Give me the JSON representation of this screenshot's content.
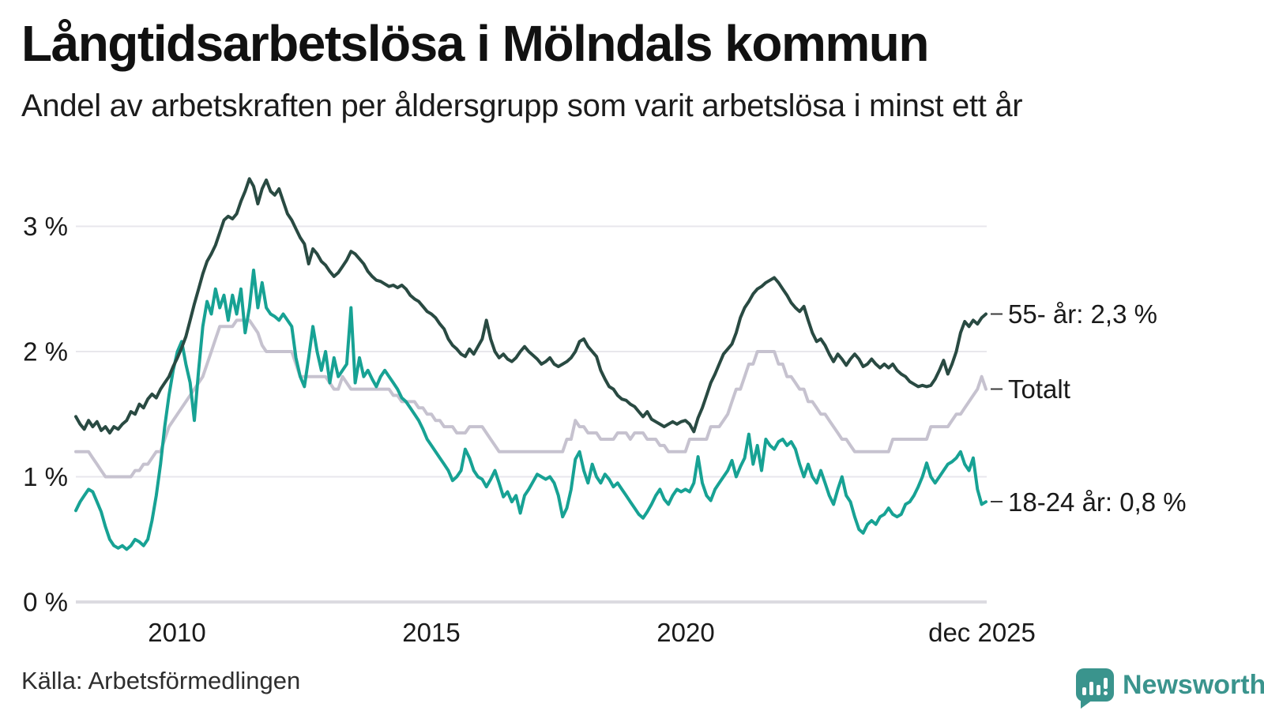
{
  "header": {
    "title": "Långtidsarbetslösa i Mölndals kommun",
    "subtitle": "Andel av arbetskraften per åldersgrupp som varit arbetslösa i minst ett år"
  },
  "footer": {
    "source": "Källa: Arbetsförmedlingen",
    "brand_name": "Newsworthy",
    "brand_color": "#3a948d",
    "brand_icon": "bar-chart-speech-bubble-icon"
  },
  "colors": {
    "series_55": "#294a42",
    "series_totalt": "#c6c2cf",
    "series_18_24": "#17a294",
    "gridline": "#e8e7ec",
    "baseline": "#dcdbe1",
    "text": "#1a1a1a",
    "connector_dash": "#3a3a3a"
  },
  "chart_data": {
    "type": "line",
    "title": "Långtidsarbetslösa i Mölndals kommun",
    "subtitle": "Andel av arbetskraften per åldersgrupp som varit arbetslösa i minst ett år",
    "x_frequency": "monthly",
    "x_start": "2008-01",
    "x_end": "2025-12",
    "x_tick_labels": [
      "2010",
      "2015",
      "2020",
      "dec 2025"
    ],
    "x_tick_month_index": [
      24,
      84,
      144,
      215
    ],
    "y_tick_labels": [
      "0 %",
      "1 %",
      "2 %",
      "3 %"
    ],
    "y_tick_values": [
      0,
      1,
      2,
      3
    ],
    "ylim": [
      0,
      3.45
    ],
    "grid": "horizontal",
    "legend_position": "right-end-labels",
    "series": [
      {
        "name": "55- år",
        "end_label": "55- år: 2,3 %",
        "end_value": "2,3 %",
        "color": "#294a42",
        "values": [
          1.48,
          1.42,
          1.38,
          1.45,
          1.4,
          1.44,
          1.37,
          1.4,
          1.35,
          1.4,
          1.38,
          1.42,
          1.45,
          1.52,
          1.5,
          1.58,
          1.55,
          1.62,
          1.66,
          1.63,
          1.7,
          1.75,
          1.8,
          1.88,
          1.95,
          2.03,
          2.12,
          2.25,
          2.38,
          2.5,
          2.62,
          2.72,
          2.78,
          2.85,
          2.95,
          3.05,
          3.08,
          3.06,
          3.1,
          3.2,
          3.28,
          3.38,
          3.32,
          3.18,
          3.3,
          3.37,
          3.28,
          3.25,
          3.3,
          3.2,
          3.1,
          3.05,
          2.98,
          2.91,
          2.86,
          2.7,
          2.82,
          2.78,
          2.72,
          2.69,
          2.64,
          2.6,
          2.63,
          2.68,
          2.73,
          2.8,
          2.78,
          2.74,
          2.7,
          2.64,
          2.6,
          2.57,
          2.56,
          2.54,
          2.52,
          2.53,
          2.51,
          2.53,
          2.5,
          2.45,
          2.42,
          2.4,
          2.36,
          2.32,
          2.3,
          2.27,
          2.22,
          2.18,
          2.1,
          2.05,
          2.02,
          1.98,
          1.96,
          2.02,
          1.98,
          2.04,
          2.1,
          2.25,
          2.1,
          2.0,
          1.95,
          1.98,
          1.94,
          1.92,
          1.95,
          2.0,
          2.04,
          2.0,
          1.97,
          1.94,
          1.9,
          1.92,
          1.95,
          1.9,
          1.88,
          1.9,
          1.92,
          1.95,
          2.0,
          2.08,
          2.1,
          2.04,
          2.0,
          1.96,
          1.85,
          1.78,
          1.72,
          1.7,
          1.65,
          1.62,
          1.61,
          1.58,
          1.56,
          1.52,
          1.48,
          1.52,
          1.46,
          1.44,
          1.42,
          1.4,
          1.42,
          1.44,
          1.42,
          1.44,
          1.45,
          1.42,
          1.36,
          1.47,
          1.55,
          1.65,
          1.75,
          1.82,
          1.9,
          1.98,
          2.02,
          2.06,
          2.15,
          2.27,
          2.35,
          2.4,
          2.46,
          2.5,
          2.52,
          2.55,
          2.57,
          2.59,
          2.55,
          2.5,
          2.45,
          2.39,
          2.35,
          2.32,
          2.36,
          2.25,
          2.15,
          2.08,
          2.1,
          2.05,
          1.98,
          1.92,
          1.98,
          1.94,
          1.89,
          1.94,
          1.98,
          1.94,
          1.88,
          1.9,
          1.94,
          1.9,
          1.87,
          1.9,
          1.87,
          1.9,
          1.85,
          1.82,
          1.8,
          1.76,
          1.74,
          1.72,
          1.73,
          1.72,
          1.73,
          1.78,
          1.85,
          1.93,
          1.82,
          1.9,
          2.0,
          2.15,
          2.24,
          2.2,
          2.25,
          2.22,
          2.27,
          2.3
        ]
      },
      {
        "name": "Totalt",
        "end_label": "Totalt",
        "end_value": "1,7 %",
        "color": "#c6c2cf",
        "values": [
          1.2,
          1.2,
          1.2,
          1.2,
          1.15,
          1.1,
          1.05,
          1.0,
          1.0,
          1.0,
          1.0,
          1.0,
          1.0,
          1.0,
          1.05,
          1.05,
          1.1,
          1.1,
          1.15,
          1.2,
          1.2,
          1.3,
          1.4,
          1.45,
          1.5,
          1.55,
          1.6,
          1.65,
          1.7,
          1.75,
          1.8,
          1.9,
          2.0,
          2.1,
          2.2,
          2.2,
          2.2,
          2.2,
          2.25,
          2.25,
          2.25,
          2.25,
          2.2,
          2.15,
          2.05,
          2.0,
          2.0,
          2.0,
          2.0,
          2.0,
          2.0,
          2.0,
          1.9,
          1.8,
          1.8,
          1.8,
          1.8,
          1.8,
          1.8,
          1.8,
          1.75,
          1.7,
          1.7,
          1.8,
          1.75,
          1.7,
          1.7,
          1.7,
          1.7,
          1.7,
          1.7,
          1.7,
          1.7,
          1.7,
          1.7,
          1.65,
          1.65,
          1.6,
          1.6,
          1.6,
          1.6,
          1.55,
          1.55,
          1.5,
          1.5,
          1.45,
          1.45,
          1.4,
          1.4,
          1.4,
          1.35,
          1.35,
          1.35,
          1.4,
          1.4,
          1.4,
          1.4,
          1.35,
          1.3,
          1.25,
          1.2,
          1.2,
          1.2,
          1.2,
          1.2,
          1.2,
          1.2,
          1.2,
          1.2,
          1.2,
          1.2,
          1.2,
          1.2,
          1.2,
          1.2,
          1.2,
          1.3,
          1.3,
          1.45,
          1.4,
          1.4,
          1.35,
          1.35,
          1.35,
          1.3,
          1.3,
          1.3,
          1.3,
          1.35,
          1.35,
          1.35,
          1.3,
          1.35,
          1.35,
          1.35,
          1.3,
          1.3,
          1.3,
          1.25,
          1.25,
          1.2,
          1.2,
          1.2,
          1.2,
          1.2,
          1.3,
          1.3,
          1.3,
          1.3,
          1.3,
          1.4,
          1.4,
          1.4,
          1.45,
          1.5,
          1.6,
          1.7,
          1.7,
          1.8,
          1.9,
          1.9,
          2.0,
          2.0,
          2.0,
          2.0,
          2.0,
          1.9,
          1.9,
          1.8,
          1.8,
          1.75,
          1.7,
          1.7,
          1.6,
          1.6,
          1.55,
          1.5,
          1.5,
          1.45,
          1.4,
          1.35,
          1.3,
          1.3,
          1.25,
          1.2,
          1.2,
          1.2,
          1.2,
          1.2,
          1.2,
          1.2,
          1.2,
          1.2,
          1.3,
          1.3,
          1.3,
          1.3,
          1.3,
          1.3,
          1.3,
          1.3,
          1.3,
          1.4,
          1.4,
          1.4,
          1.4,
          1.4,
          1.45,
          1.5,
          1.5,
          1.55,
          1.6,
          1.65,
          1.7,
          1.8,
          1.7
        ]
      },
      {
        "name": "18-24 år",
        "end_label": "18-24 år: 0,8 %",
        "end_value": "0,8 %",
        "color": "#17a294",
        "values": [
          0.73,
          0.8,
          0.85,
          0.9,
          0.88,
          0.8,
          0.72,
          0.6,
          0.5,
          0.45,
          0.43,
          0.45,
          0.42,
          0.45,
          0.5,
          0.48,
          0.45,
          0.5,
          0.65,
          0.85,
          1.1,
          1.4,
          1.65,
          1.85,
          2.0,
          2.08,
          1.9,
          1.75,
          1.45,
          1.85,
          2.2,
          2.4,
          2.3,
          2.5,
          2.35,
          2.45,
          2.25,
          2.45,
          2.3,
          2.5,
          2.15,
          2.35,
          2.65,
          2.35,
          2.55,
          2.35,
          2.3,
          2.28,
          2.25,
          2.3,
          2.25,
          2.2,
          1.95,
          1.8,
          1.72,
          1.95,
          2.2,
          2.0,
          1.85,
          2.0,
          1.75,
          1.95,
          1.8,
          1.85,
          1.9,
          2.35,
          1.75,
          1.95,
          1.8,
          1.85,
          1.78,
          1.72,
          1.8,
          1.85,
          1.8,
          1.75,
          1.7,
          1.63,
          1.6,
          1.55,
          1.5,
          1.45,
          1.38,
          1.3,
          1.25,
          1.2,
          1.15,
          1.1,
          1.05,
          0.97,
          1.0,
          1.05,
          1.22,
          1.15,
          1.05,
          1.0,
          0.98,
          0.92,
          0.98,
          1.05,
          0.95,
          0.84,
          0.88,
          0.8,
          0.85,
          0.71,
          0.85,
          0.9,
          0.96,
          1.02,
          1.0,
          0.98,
          1.0,
          0.95,
          0.85,
          0.68,
          0.75,
          0.9,
          1.14,
          1.2,
          1.05,
          0.95,
          1.1,
          1.0,
          0.95,
          1.02,
          0.98,
          0.92,
          0.95,
          0.9,
          0.85,
          0.8,
          0.75,
          0.7,
          0.67,
          0.72,
          0.78,
          0.85,
          0.9,
          0.82,
          0.78,
          0.85,
          0.9,
          0.88,
          0.9,
          0.88,
          0.95,
          1.16,
          0.95,
          0.85,
          0.81,
          0.9,
          0.95,
          1.0,
          1.05,
          1.13,
          1.0,
          1.08,
          1.15,
          1.34,
          1.1,
          1.25,
          1.05,
          1.3,
          1.25,
          1.22,
          1.28,
          1.3,
          1.25,
          1.28,
          1.22,
          1.1,
          1.0,
          1.1,
          1.0,
          0.95,
          1.05,
          0.95,
          0.85,
          0.78,
          0.9,
          1.0,
          0.85,
          0.8,
          0.68,
          0.58,
          0.55,
          0.62,
          0.65,
          0.62,
          0.68,
          0.7,
          0.75,
          0.7,
          0.68,
          0.7,
          0.78,
          0.8,
          0.85,
          0.92,
          1.0,
          1.11,
          1.0,
          0.95,
          1.0,
          1.05,
          1.1,
          1.12,
          1.15,
          1.2,
          1.1,
          1.05,
          1.15,
          0.9,
          0.78,
          0.8
        ]
      }
    ]
  }
}
